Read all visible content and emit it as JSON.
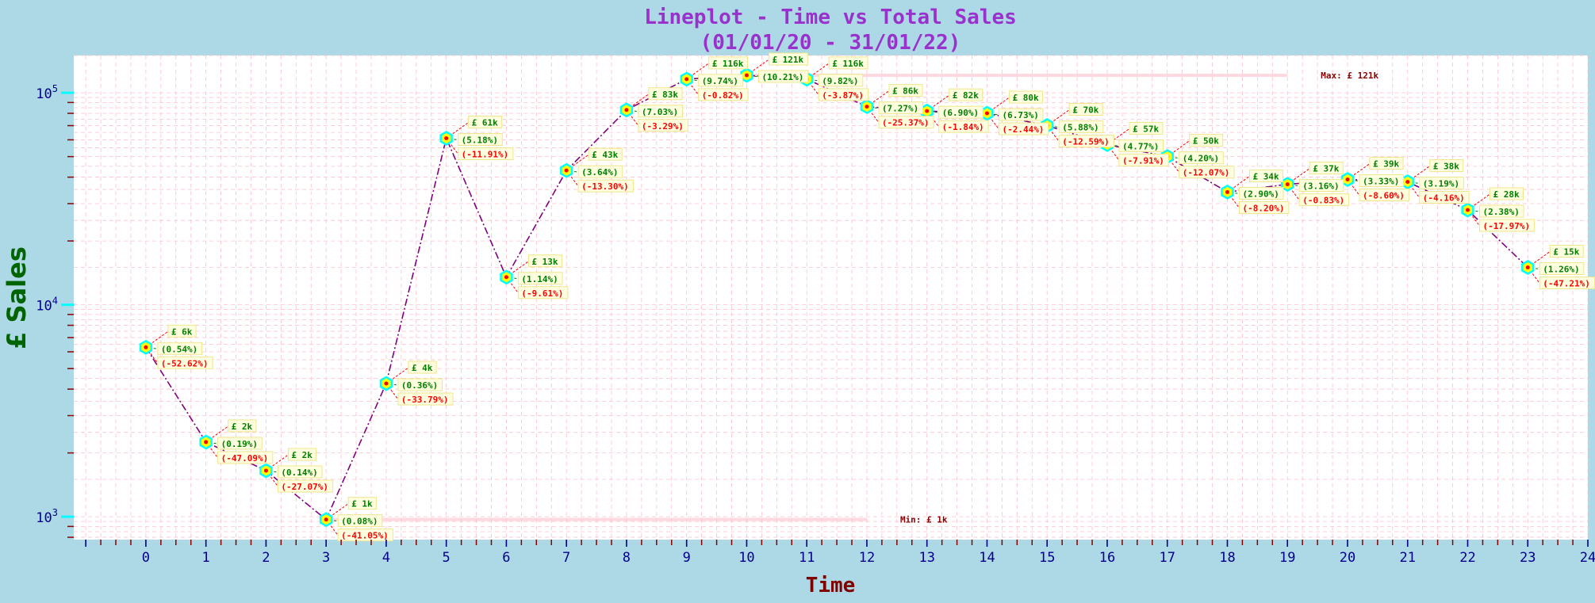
{
  "chart_data": {
    "type": "line",
    "title_line1": "Lineplot - Time vs Total Sales",
    "title_line2": "(01/01/20 - 31/01/22)",
    "xlabel": "Time",
    "ylabel": "£ Sales",
    "y_scale": "log",
    "ylim": [
      780,
      150000
    ],
    "xlim": [
      -1.2,
      24
    ],
    "x_ticks": [
      0,
      1,
      2,
      3,
      4,
      5,
      6,
      7,
      8,
      9,
      10,
      11,
      12,
      13,
      14,
      15,
      16,
      17,
      18,
      19,
      20,
      21,
      22,
      23,
      24
    ],
    "y_ticks": [
      {
        "value": 1000,
        "base": "10",
        "exp": "3"
      },
      {
        "value": 10000,
        "base": "10",
        "exp": "4"
      },
      {
        "value": 100000,
        "base": "10",
        "exp": "5"
      }
    ],
    "grid": true,
    "colors": {
      "line": "#800080",
      "marker_fill": "#ffff00",
      "marker_edge": "#00ffff",
      "value_label": "#008000",
      "share_label": "#008000",
      "change_label": "#ff0000",
      "annotation_box_bg": "#ffffe0",
      "annotation_box_border": "#f0e68c",
      "grid": "#ffc0cb",
      "extreme_line": "#ffc0cb",
      "extreme_text": "#8b0000"
    },
    "x": [
      0,
      1,
      2,
      3,
      4,
      5,
      6,
      7,
      8,
      9,
      10,
      11,
      12,
      13,
      14,
      15,
      16,
      17,
      18,
      19,
      20,
      21,
      22,
      23
    ],
    "values": [
      6300,
      2250,
      1650,
      970,
      4250,
      61000,
      13500,
      43000,
      83000,
      116000,
      121000,
      116000,
      86000,
      82000,
      80000,
      70000,
      57000,
      50000,
      34000,
      37000,
      39000,
      38000,
      28000,
      15000
    ],
    "value_labels": [
      "£ 6k",
      "£ 2k",
      "£ 2k",
      "£ 1k",
      "£ 4k",
      "£ 61k",
      "£ 13k",
      "£ 43k",
      "£ 83k",
      "£ 116k",
      "£ 121k",
      "£ 116k",
      "£ 86k",
      "£ 82k",
      "£ 80k",
      "£ 70k",
      "£ 57k",
      "£ 50k",
      "£ 34k",
      "£ 37k",
      "£ 39k",
      "£ 38k",
      "£ 28k",
      "£ 15k"
    ],
    "share_labels": [
      "(0.54%)",
      "(0.19%)",
      "(0.14%)",
      "(0.08%)",
      "(0.36%)",
      "(5.18%)",
      "(1.14%)",
      "(3.64%)",
      "(7.03%)",
      "(9.74%)",
      "(10.21%)",
      "(9.82%)",
      "(7.27%)",
      "(6.90%)",
      "(6.73%)",
      "(5.88%)",
      "(4.77%)",
      "(4.20%)",
      "(2.90%)",
      "(3.16%)",
      "(3.33%)",
      "(3.19%)",
      "(2.38%)",
      "(1.26%)"
    ],
    "change_labels": [
      "(-52.62%)",
      "(-47.09%)",
      "(-27.07%)",
      "(-41.05%)",
      "(-33.79%)",
      "(-11.91%)",
      "(-9.61%)",
      "(-13.30%)",
      "(-3.29%)",
      "(-0.82%)",
      "",
      "(-3.87%)",
      "(-25.37%)",
      "(-1.84%)",
      "(-2.44%)",
      "(-12.59%)",
      "(-7.91%)",
      "(-12.07%)",
      "(-8.20%)",
      "(-0.83%)",
      "(-8.60%)",
      "(-4.16%)",
      "(-17.97%)",
      "(-47.21%)"
    ],
    "max": {
      "label": "Max: £ 121k",
      "value": 121000,
      "x_from": 10,
      "x_to": 19
    },
    "min": {
      "label": "Min: £ 1k",
      "value": 970,
      "x_from": 3,
      "x_to": 12
    }
  }
}
